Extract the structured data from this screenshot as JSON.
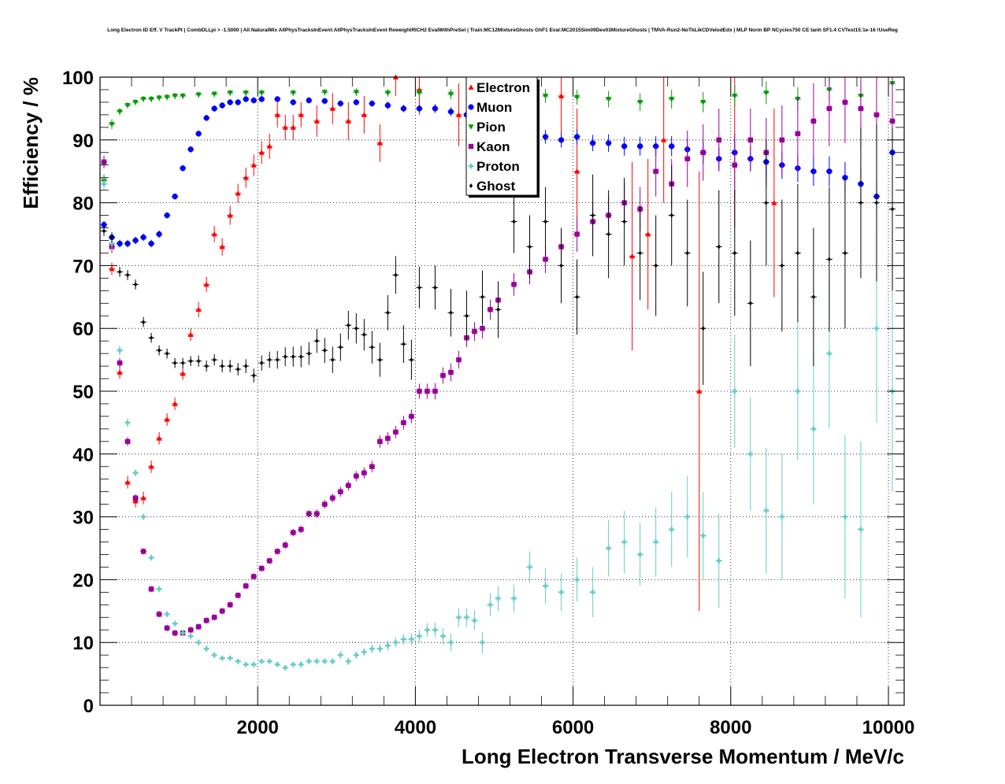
{
  "chart_data": {
    "type": "scatter",
    "title": "Long Electron ID Eff. V TrackPt | CombDLLpi > -1.5000 | All NaturalMix AllPhysTracksInEvent:AllPhysTracksInEvent ReweightRICH2 EvalWithPreSel | Train:MC12MixtureGhosts GhF1 Eval:MC2015Sim09Dev03MixtureGhosts | TMVA-Run2-NoTkLikCDVelodEdx | MLP Norm BP NCycles750 CE tanh SF1.4 CVTest15:1e-16 !UseReg",
    "xlabel": "Long Electron Transverse Momentum / MeV/c",
    "ylabel": "Efficiency / %",
    "xlim": [
      0,
      10200
    ],
    "ylim": [
      0,
      100
    ],
    "x_ticks": [
      "2000",
      "4000",
      "6000",
      "8000",
      "10000"
    ],
    "y_ticks": [
      "0",
      "10",
      "20",
      "30",
      "40",
      "50",
      "60",
      "70",
      "80",
      "90",
      "100"
    ],
    "grid": true,
    "legend_position": "top-center",
    "series": [
      {
        "name": "Electron",
        "color": "#ff0000",
        "marker": "triangle-up",
        "x": [
          100,
          200,
          300,
          400,
          500,
          600,
          700,
          800,
          900,
          1000,
          1100,
          1200,
          1300,
          1400,
          1500,
          1600,
          1700,
          1800,
          1900,
          2000,
          2100,
          2200,
          2300,
          2400,
          2500,
          2700,
          2900,
          3100,
          3300,
          3500,
          3700,
          4000,
          4500,
          5000,
          5800,
          6000,
          6700,
          6900,
          7100,
          7550,
          8000,
          8500
        ],
        "y": [
          69.5,
          53,
          35.5,
          32.5,
          33,
          38,
          42.5,
          45.5,
          48,
          52.8,
          59,
          63,
          67,
          75,
          73,
          78,
          81.5,
          84,
          86,
          88,
          89,
          94,
          92,
          92,
          94,
          93,
          95,
          93,
          94,
          89.5,
          100,
          98,
          94,
          96,
          97,
          85,
          71.5,
          75,
          90,
          50,
          88,
          80
        ],
        "err": [
          1,
          1,
          1,
          1,
          1,
          1,
          1,
          1,
          1,
          1,
          1,
          1.2,
          1.2,
          1.3,
          1.4,
          1.5,
          1.5,
          1.6,
          1.7,
          1.8,
          2,
          2,
          2,
          2,
          2,
          2.5,
          2.5,
          3,
          3,
          3,
          3,
          4,
          5,
          5,
          6,
          10,
          15,
          12,
          10,
          35,
          12,
          15
        ]
      },
      {
        "name": "Muon",
        "color": "#0000ff",
        "marker": "circle",
        "x": [
          0,
          100,
          200,
          300,
          400,
          500,
          600,
          700,
          800,
          900,
          1000,
          1100,
          1200,
          1300,
          1400,
          1500,
          1600,
          1700,
          1800,
          1900,
          2000,
          2200,
          2400,
          2600,
          2800,
          3000,
          3200,
          3400,
          3600,
          3800,
          4000,
          4200,
          4400,
          4600,
          4800,
          5000,
          5200,
          5400,
          5600,
          5800,
          6000,
          6200,
          6400,
          6600,
          6800,
          7000,
          7200,
          7400,
          7600,
          7800,
          8000,
          8200,
          8400,
          8600,
          8800,
          9000,
          9200,
          9400,
          9600,
          9800,
          10000
        ],
        "y": [
          76.5,
          74.5,
          73.5,
          73.5,
          74,
          74.5,
          73.5,
          75,
          78,
          81,
          85.5,
          88.5,
          91,
          93.5,
          95,
          95.5,
          96,
          96,
          96.5,
          96.3,
          96.5,
          96.5,
          96,
          96.3,
          96.2,
          95.8,
          96,
          95.8,
          95.5,
          95,
          95,
          95,
          94.5,
          94,
          93,
          92,
          91.5,
          91,
          90.5,
          90,
          90.5,
          89.5,
          89.5,
          89,
          89,
          89,
          89,
          88.5,
          88,
          87,
          88,
          87,
          86.5,
          86,
          85.5,
          85,
          85,
          84,
          83,
          81,
          88
        ],
        "err": [
          0.6,
          0.6,
          0.6,
          0.6,
          0.6,
          0.6,
          0.6,
          0.6,
          0.5,
          0.5,
          0.5,
          0.5,
          0.5,
          0.5,
          0.5,
          0.5,
          0.5,
          0.5,
          0.5,
          0.5,
          0.5,
          0.5,
          0.5,
          0.5,
          0.5,
          0.5,
          0.5,
          0.5,
          0.6,
          0.6,
          0.6,
          0.7,
          0.7,
          0.8,
          0.8,
          0.9,
          1,
          1,
          1.1,
          1.2,
          1.2,
          1.3,
          1.4,
          1.5,
          1.5,
          1.6,
          1.6,
          1.7,
          1.8,
          1.8,
          2,
          2,
          2,
          2.2,
          2.2,
          2.3,
          2.4,
          2.5,
          2.6,
          2.8,
          3
        ]
      },
      {
        "name": "Pion",
        "color": "#009900",
        "marker": "triangle-down",
        "x": [
          0,
          100,
          200,
          300,
          400,
          500,
          600,
          700,
          800,
          900,
          1000,
          1200,
          1400,
          1600,
          1800,
          2000,
          2400,
          2800,
          3200,
          3600,
          4000,
          4400,
          4800,
          5200,
          5600,
          6000,
          6400,
          6800,
          7200,
          7600,
          8000,
          8400,
          8800,
          9200,
          9600,
          10000
        ],
        "y": [
          83.5,
          92.5,
          94.5,
          95.5,
          96,
          96.5,
          96.5,
          96.7,
          96.8,
          97,
          97,
          97.2,
          97.3,
          97.5,
          97.5,
          97.5,
          97.5,
          97.6,
          97.6,
          97.5,
          97.5,
          97.3,
          97.2,
          97,
          97,
          96.8,
          96.5,
          96,
          96.5,
          96,
          97,
          97.5,
          96.5,
          98,
          97,
          99
        ],
        "err": [
          1,
          0.8,
          0.6,
          0.5,
          0.5,
          0.5,
          0.5,
          0.5,
          0.5,
          0.5,
          0.5,
          0.5,
          0.5,
          0.5,
          0.5,
          0.5,
          0.5,
          0.5,
          0.6,
          0.6,
          0.7,
          0.8,
          0.9,
          1,
          1.1,
          1.2,
          1.3,
          1.4,
          1.5,
          1.6,
          1.7,
          1.8,
          1.9,
          2,
          2.2,
          2.5
        ]
      },
      {
        "name": "Kaon",
        "color": "#990099",
        "marker": "square",
        "x": [
          0,
          100,
          200,
          300,
          400,
          500,
          600,
          700,
          800,
          900,
          1000,
          1100,
          1200,
          1300,
          1400,
          1500,
          1600,
          1700,
          1800,
          1900,
          2000,
          2100,
          2200,
          2300,
          2400,
          2500,
          2600,
          2700,
          2800,
          2900,
          3000,
          3100,
          3200,
          3300,
          3400,
          3500,
          3600,
          3700,
          3800,
          3900,
          4000,
          4100,
          4200,
          4300,
          4400,
          4500,
          4600,
          4700,
          4800,
          4900,
          5000,
          5200,
          5400,
          5600,
          5800,
          6000,
          6200,
          6400,
          6600,
          6800,
          7000,
          7200,
          7400,
          7600,
          7800,
          8000,
          8200,
          8400,
          8600,
          8800,
          9000,
          9200,
          9400,
          9600,
          9800,
          10000
        ],
        "y": [
          86.5,
          73,
          54.5,
          42,
          33,
          24.5,
          18.5,
          14.5,
          12.3,
          11.5,
          11.5,
          12,
          12.5,
          13.5,
          14,
          15,
          16,
          17.5,
          19,
          20.5,
          21.8,
          23,
          24.5,
          25.5,
          27.5,
          28,
          30.5,
          30.5,
          32,
          33,
          34,
          35,
          36.5,
          37,
          38,
          42,
          42.5,
          43.5,
          45,
          46,
          50,
          50,
          50,
          52.5,
          53,
          55,
          58.5,
          59.5,
          60,
          63,
          64.5,
          67,
          69,
          71,
          73,
          75,
          77,
          78,
          80,
          79,
          85,
          83,
          87,
          88,
          90,
          86,
          90,
          88,
          90,
          91,
          93,
          95,
          96,
          95,
          94,
          93
        ],
        "err": [
          1,
          1,
          0.8,
          0.7,
          0.6,
          0.5,
          0.5,
          0.5,
          0.5,
          0.5,
          0.5,
          0.5,
          0.5,
          0.5,
          0.5,
          0.5,
          0.5,
          0.5,
          0.5,
          0.5,
          0.5,
          0.5,
          0.5,
          0.6,
          0.6,
          0.6,
          0.6,
          0.7,
          0.7,
          0.7,
          0.8,
          0.8,
          0.8,
          0.9,
          0.9,
          1,
          1,
          1,
          1.1,
          1.1,
          1.2,
          1.2,
          1.3,
          1.3,
          1.4,
          1.4,
          1.5,
          1.5,
          1.6,
          1.6,
          1.7,
          1.8,
          2,
          2.2,
          2.5,
          2.8,
          3,
          3,
          3.5,
          3.5,
          4,
          4,
          4.5,
          4.5,
          5,
          5,
          5,
          5.5,
          5.5,
          6,
          6,
          6,
          6.5,
          6.5,
          7,
          7
        ]
      },
      {
        "name": "Proton",
        "color": "#66cccc",
        "marker": "cross",
        "x": [
          0,
          100,
          200,
          300,
          400,
          500,
          600,
          700,
          800,
          900,
          1000,
          1100,
          1200,
          1300,
          1400,
          1500,
          1600,
          1700,
          1800,
          1900,
          2000,
          2100,
          2200,
          2300,
          2400,
          2500,
          2600,
          2700,
          2800,
          2900,
          3000,
          3100,
          3200,
          3300,
          3400,
          3500,
          3600,
          3700,
          3800,
          3900,
          4000,
          4100,
          4200,
          4300,
          4400,
          4500,
          4600,
          4700,
          4800,
          4900,
          5000,
          5200,
          5400,
          5600,
          5800,
          6000,
          6200,
          6400,
          6600,
          6800,
          7000,
          7200,
          7400,
          7600,
          7800,
          8000,
          8200,
          8400,
          8600,
          8800,
          9000,
          9200,
          9400,
          9600,
          9800,
          10000
        ],
        "y": [
          83,
          73.5,
          56.5,
          45,
          37,
          30,
          23.5,
          18.5,
          14.5,
          13,
          11.5,
          11,
          10,
          9,
          8,
          7.5,
          7.5,
          7,
          6.5,
          6.5,
          7,
          7,
          6.5,
          6,
          6.5,
          6.5,
          7,
          7,
          7,
          7,
          8,
          7,
          8,
          8.5,
          9,
          9,
          9.5,
          10,
          10.5,
          10.5,
          11,
          12,
          12,
          11,
          10,
          14,
          14,
          13.5,
          10,
          16,
          17,
          17,
          22,
          19,
          18,
          20,
          18,
          25,
          26,
          24,
          26,
          28,
          30,
          27,
          23,
          50,
          40,
          31,
          30,
          50,
          44,
          56,
          30,
          28,
          60,
          50
        ],
        "err": [
          1,
          1,
          0.8,
          0.7,
          0.6,
          0.5,
          0.5,
          0.5,
          0.5,
          0.5,
          0.5,
          0.5,
          0.5,
          0.5,
          0.5,
          0.4,
          0.4,
          0.4,
          0.4,
          0.4,
          0.4,
          0.4,
          0.4,
          0.4,
          0.4,
          0.5,
          0.5,
          0.5,
          0.5,
          0.5,
          0.6,
          0.6,
          0.6,
          0.6,
          0.7,
          0.7,
          0.8,
          0.8,
          0.9,
          1,
          1,
          1.1,
          1.2,
          1.3,
          1.4,
          1.5,
          1.5,
          1.6,
          1.7,
          1.8,
          2,
          2.2,
          2.5,
          2.8,
          3,
          3.5,
          4,
          4.5,
          5,
          5,
          5.5,
          6,
          6.5,
          7,
          7.5,
          9,
          9,
          10,
          10,
          11,
          12,
          12,
          13,
          14,
          15,
          16
        ]
      },
      {
        "name": "Ghost",
        "color": "#000000",
        "marker": "diamond",
        "x": [
          0,
          100,
          200,
          300,
          400,
          500,
          600,
          700,
          800,
          900,
          1000,
          1100,
          1200,
          1300,
          1400,
          1500,
          1600,
          1700,
          1800,
          1900,
          2000,
          2100,
          2200,
          2300,
          2400,
          2500,
          2600,
          2700,
          2800,
          2900,
          3000,
          3100,
          3200,
          3300,
          3400,
          3500,
          3600,
          3700,
          3800,
          3900,
          4000,
          4200,
          4400,
          4600,
          4800,
          5000,
          5200,
          5400,
          5600,
          5800,
          6000,
          6200,
          6400,
          6600,
          6800,
          7000,
          7200,
          7400,
          7600,
          7800,
          8000,
          8200,
          8400,
          8600,
          8800,
          9000,
          9200,
          9400,
          9600,
          9800,
          10000
        ],
        "y": [
          75.5,
          74.5,
          69,
          68.5,
          67,
          61,
          58.5,
          56.5,
          56,
          54.5,
          54.5,
          54.8,
          54.8,
          54,
          55,
          54,
          54,
          53.5,
          54,
          52.5,
          54.5,
          55,
          55,
          55.5,
          55.5,
          55.5,
          56,
          58,
          56.5,
          55,
          57,
          60.5,
          60,
          59,
          57,
          55,
          62.5,
          68.5,
          57.5,
          55,
          66.5,
          66.5,
          62.5,
          62,
          65,
          63,
          77,
          73,
          77,
          70,
          65,
          78,
          75,
          77,
          72,
          70,
          78,
          72,
          60,
          73,
          72,
          64,
          80,
          70,
          72,
          65,
          71,
          72,
          80,
          80,
          79
        ],
        "err": [
          0.8,
          0.8,
          0.8,
          0.8,
          0.8,
          0.8,
          0.8,
          0.8,
          0.8,
          0.8,
          0.8,
          0.8,
          0.9,
          0.9,
          0.9,
          1,
          1,
          1,
          1.1,
          1.1,
          1.2,
          1.3,
          1.4,
          1.5,
          1.6,
          1.7,
          1.8,
          1.9,
          2,
          2.1,
          2.2,
          2.3,
          2.4,
          2.5,
          2.6,
          2.7,
          2.8,
          3,
          3,
          3.2,
          3.3,
          3.5,
          3.8,
          4,
          4.2,
          4.5,
          5,
          5,
          5.5,
          6,
          6,
          6.5,
          7,
          7,
          7.5,
          8,
          8,
          8.5,
          9,
          9,
          10,
          10,
          10,
          10.5,
          11,
          11,
          11.5,
          12,
          12,
          12.5,
          13
        ]
      }
    ]
  }
}
